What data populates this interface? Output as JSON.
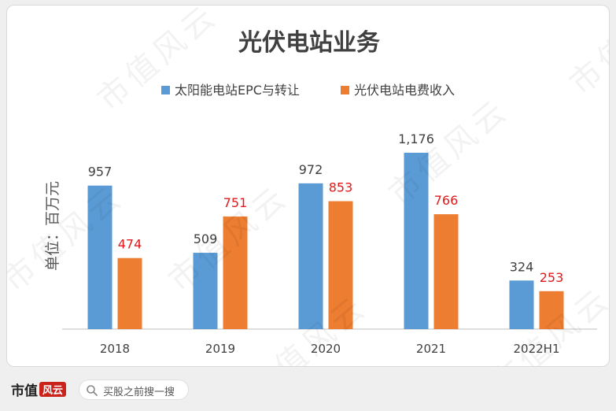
{
  "chart_data": {
    "type": "bar",
    "title": "光伏电站业务",
    "ylabel": "单位：百万元",
    "xlabel": "",
    "categories": [
      "2018",
      "2019",
      "2020",
      "2021",
      "2022H1"
    ],
    "series": [
      {
        "name": "太阳能电站EPC与转让",
        "values": [
          957,
          509,
          972,
          1176,
          324
        ],
        "labels": [
          "957",
          "509",
          "972",
          "1,176",
          "324"
        ],
        "color": "#5b9bd5",
        "label_color": "#404040"
      },
      {
        "name": "光伏电站电费收入",
        "values": [
          474,
          751,
          853,
          766,
          253
        ],
        "labels": [
          "474",
          "751",
          "853",
          "766",
          "253"
        ],
        "color": "#ed7d31",
        "label_color": "#e0191b"
      }
    ],
    "ylim": [
      0,
      1176
    ],
    "legend": "top",
    "grid": false
  },
  "watermark": "市值风云",
  "footer": {
    "brand": "市值",
    "brand_mark": "风云",
    "search_text": "买股之前搜一搜"
  }
}
